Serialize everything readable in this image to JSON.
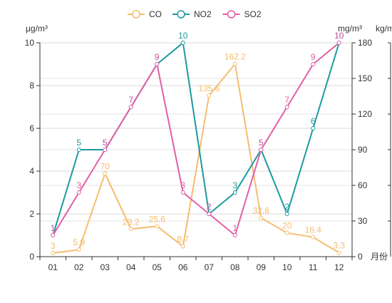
{
  "chart_data": {
    "type": "line",
    "categories": [
      "01",
      "02",
      "03",
      "04",
      "05",
      "06",
      "07",
      "08",
      "09",
      "10",
      "11",
      "12"
    ],
    "x_suffix": "月份",
    "legend_position": "top-center",
    "grid": true,
    "axes": {
      "left": {
        "label": "μg/m³",
        "min": 0,
        "max": 10,
        "ticks": [
          0,
          2,
          4,
          6,
          8,
          10
        ]
      },
      "right1": {
        "label": "mg/m³",
        "min": 0,
        "max": 180,
        "ticks": [
          0,
          30,
          60,
          90,
          120,
          150,
          180
        ]
      },
      "right2": {
        "label": "kg/m"
      }
    },
    "series": [
      {
        "name": "CO",
        "color": "#f5bd6e",
        "axis": "right1",
        "values": [
          3,
          5.9,
          70,
          23.2,
          25.6,
          8.7,
          135.6,
          162.2,
          32.6,
          20,
          16.4,
          3.3
        ],
        "labels": [
          "3",
          "5.9",
          "70",
          "23.2",
          "25.6",
          "8.7",
          "135.6",
          "162.2",
          "32.6",
          "20",
          "16.4",
          "3.3"
        ]
      },
      {
        "name": "NO2",
        "color": "#1b9aa0",
        "axis": "left",
        "values": [
          1,
          5,
          5,
          7,
          9,
          10,
          2,
          3,
          5,
          2,
          6,
          10
        ],
        "labels": [
          "1",
          "5",
          "5",
          "7",
          "9",
          "10",
          "2",
          "3",
          "5",
          "2",
          "6",
          "10"
        ]
      },
      {
        "name": "SO2",
        "color": "#e25ea8",
        "axis": "left",
        "values": [
          1,
          3,
          5,
          7,
          9,
          3,
          2,
          1,
          5,
          7,
          9,
          10
        ],
        "labels": [
          "1",
          "3",
          "5",
          "7",
          "9",
          "3",
          "2",
          "1",
          "5",
          "7",
          "9",
          "10"
        ]
      }
    ]
  }
}
